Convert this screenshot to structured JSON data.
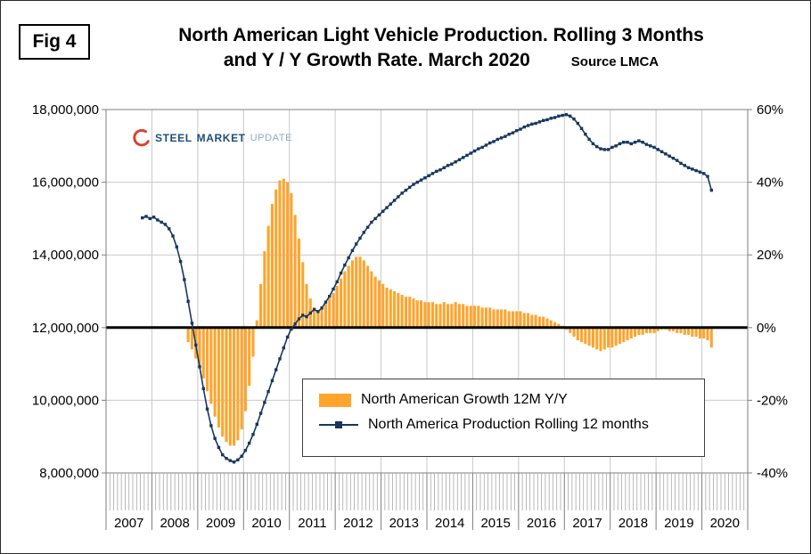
{
  "header": {
    "figure_label": "Fig 4",
    "title_line1": "North American Light Vehicle Production. Rolling 3 Months",
    "title_line2": "and Y / Y Growth Rate. March 2020",
    "source": "Source LMCA"
  },
  "logo": {
    "part1": "STEEL",
    "part2": "MARKET",
    "part3": "UPDATE"
  },
  "chart_data": {
    "type": "combo-bar-line",
    "title": "North American Light Vehicle Production. Rolling 3 Months and Y / Y Growth Rate. March 2020",
    "grid": true,
    "legend_position": "inside-bottom-center",
    "left_axis": {
      "min": 8000000,
      "max": 18000000,
      "step": 2000000,
      "tick_labels": [
        "8,000,000",
        "10,000,000",
        "12,000,000",
        "14,000,000",
        "16,000,000",
        "18,000,000"
      ]
    },
    "right_axis": {
      "min": -40,
      "max": 60,
      "step": 20,
      "tick_labels": [
        "-40%",
        "-20%",
        "0%",
        "20%",
        "40%",
        "60%"
      ]
    },
    "x_axis": {
      "years": [
        "2007",
        "2008",
        "2009",
        "2010",
        "2011",
        "2012",
        "2013",
        "2014",
        "2015",
        "2016",
        "2017",
        "2018",
        "2019",
        "2020"
      ],
      "months_total": 168,
      "start": "2007-01"
    },
    "series": {
      "growth": {
        "name": "North American Growth 12M Y/Y",
        "type": "bar",
        "axis": "right",
        "unit": "percent",
        "start": "2008-10",
        "start_month_index": 21,
        "values": [
          -4,
          -6,
          -8.5,
          -11,
          -14,
          -17.5,
          -21,
          -24.5,
          -27.5,
          -30,
          -31.5,
          -32.5,
          -32.5,
          -31,
          -28,
          -23,
          -16,
          -8,
          2,
          12,
          21,
          28,
          34,
          38,
          40.5,
          41,
          40,
          37,
          31,
          24.5,
          18,
          12,
          8,
          5.5,
          4.5,
          5,
          6.5,
          8,
          9.5,
          11.5,
          13.5,
          15.5,
          17,
          18.5,
          19.5,
          19.5,
          18.5,
          17,
          15.5,
          14,
          13,
          12,
          11,
          10.5,
          10,
          9.5,
          9,
          8.5,
          8.5,
          8,
          7.5,
          7.5,
          7,
          7,
          7,
          6.5,
          6.5,
          7,
          6.5,
          6.5,
          7,
          6.5,
          6.5,
          6,
          6,
          6,
          6,
          5.5,
          5.5,
          5.5,
          5,
          5,
          5,
          5,
          4.5,
          4.5,
          4.5,
          4.5,
          4,
          4,
          3.5,
          3.5,
          3,
          3,
          2.5,
          2,
          1.5,
          1,
          0.5,
          -0.5,
          -1.5,
          -2.5,
          -3.5,
          -4,
          -4.5,
          -5,
          -5.5,
          -6,
          -6.5,
          -6,
          -5.5,
          -5.5,
          -5,
          -4.5,
          -4,
          -3.5,
          -3,
          -2.5,
          -2,
          -2,
          -1.5,
          -1.5,
          -1.5,
          -1,
          -0.5,
          -0.5,
          -1,
          -1,
          -1.5,
          -1.5,
          -2,
          -2,
          -2.5,
          -2.5,
          -3,
          -3,
          -3.5,
          -5.5
        ]
      },
      "production": {
        "name": "North America Production Rolling 12 months",
        "type": "line",
        "axis": "left",
        "unit": "million vehicles",
        "start": "2007-10",
        "start_month_index": 9,
        "values_millions": [
          15.02,
          15.06,
          15.0,
          15.04,
          14.96,
          14.9,
          14.84,
          14.72,
          14.52,
          14.22,
          13.82,
          13.32,
          12.72,
          12.12,
          11.52,
          10.92,
          10.32,
          9.76,
          9.3,
          8.95,
          8.7,
          8.5,
          8.4,
          8.34,
          8.3,
          8.36,
          8.46,
          8.62,
          8.82,
          9.06,
          9.34,
          9.64,
          9.94,
          10.24,
          10.54,
          10.84,
          11.14,
          11.44,
          11.74,
          11.96,
          12.1,
          12.24,
          12.34,
          12.3,
          12.4,
          12.5,
          12.44,
          12.54,
          12.7,
          12.86,
          13.06,
          13.26,
          13.5,
          13.72,
          13.92,
          14.12,
          14.3,
          14.46,
          14.62,
          14.76,
          14.9,
          15.0,
          15.1,
          15.2,
          15.3,
          15.4,
          15.5,
          15.6,
          15.7,
          15.78,
          15.86,
          15.94,
          16.0,
          16.06,
          16.12,
          16.18,
          16.24,
          16.3,
          16.34,
          16.4,
          16.46,
          16.5,
          16.56,
          16.62,
          16.68,
          16.74,
          16.8,
          16.86,
          16.92,
          16.96,
          17.02,
          17.08,
          17.12,
          17.18,
          17.22,
          17.26,
          17.32,
          17.36,
          17.42,
          17.46,
          17.52,
          17.56,
          17.6,
          17.62,
          17.66,
          17.7,
          17.72,
          17.76,
          17.78,
          17.82,
          17.84,
          17.86,
          17.82,
          17.74,
          17.62,
          17.48,
          17.32,
          17.18,
          17.06,
          16.98,
          16.92,
          16.9,
          16.9,
          16.96,
          17.0,
          17.06,
          17.1,
          17.1,
          17.06,
          17.1,
          17.14,
          17.1,
          17.04,
          17.0,
          16.96,
          16.9,
          16.84,
          16.78,
          16.72,
          16.66,
          16.6,
          16.52,
          16.46,
          16.4,
          16.36,
          16.32,
          16.28,
          16.24,
          16.16,
          15.78
        ]
      }
    },
    "colors": {
      "bar": "#FFA42C",
      "line": "#17375E",
      "zero_line": "#000000",
      "grid": "#C9C9C9",
      "axis": "#7F7F7F",
      "logo_swoosh": "#D8432C",
      "logo_text_dark": "#1F4E79",
      "logo_text_light": "#8EA9C1"
    }
  }
}
